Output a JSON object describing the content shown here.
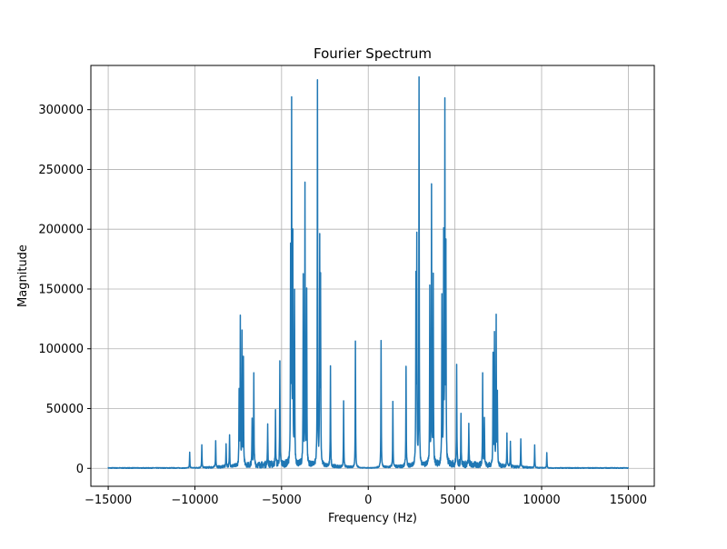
{
  "chart_data": {
    "type": "line",
    "title": "Fourier Spectrum",
    "xlabel": "Frequency (Hz)",
    "ylabel": "Magnitude",
    "xlim": [
      -16000,
      16500
    ],
    "ylim": [
      -15000,
      337000
    ],
    "x_ticks": [
      -15000,
      -10000,
      -5000,
      0,
      5000,
      10000,
      15000
    ],
    "x_tick_labels": [
      "−15000",
      "−10000",
      "−5000",
      "0",
      "5000",
      "10000",
      "15000"
    ],
    "y_ticks": [
      0,
      50000,
      100000,
      150000,
      200000,
      250000,
      300000
    ],
    "y_tick_labels": [
      "0",
      "50000",
      "100000",
      "150000",
      "200000",
      "250000",
      "300000"
    ],
    "grid": true,
    "line_color": "#1f77b4",
    "x_range": [
      -15000,
      15000
    ],
    "symmetric_about_zero": true,
    "peaks": [
      {
        "x": 740,
        "y": 106000
      },
      {
        "x": 1420,
        "y": 55000
      },
      {
        "x": 2180,
        "y": 85000
      },
      {
        "x": 2750,
        "y": 150000
      },
      {
        "x": 2800,
        "y": 183000
      },
      {
        "x": 2930,
        "y": 321000
      },
      {
        "x": 3550,
        "y": 145000
      },
      {
        "x": 3650,
        "y": 232000
      },
      {
        "x": 3750,
        "y": 155000
      },
      {
        "x": 4250,
        "y": 140000
      },
      {
        "x": 4350,
        "y": 185000
      },
      {
        "x": 4420,
        "y": 295000
      },
      {
        "x": 4480,
        "y": 175000
      },
      {
        "x": 5100,
        "y": 84000
      },
      {
        "x": 5350,
        "y": 45000
      },
      {
        "x": 5800,
        "y": 35000
      },
      {
        "x": 6600,
        "y": 75000
      },
      {
        "x": 6700,
        "y": 40000
      },
      {
        "x": 7200,
        "y": 90000
      },
      {
        "x": 7280,
        "y": 110000
      },
      {
        "x": 7380,
        "y": 123000
      },
      {
        "x": 7450,
        "y": 60000
      },
      {
        "x": 8000,
        "y": 27000
      },
      {
        "x": 8200,
        "y": 20000
      },
      {
        "x": 8800,
        "y": 23000
      },
      {
        "x": 9600,
        "y": 19000
      },
      {
        "x": 10300,
        "y": 13000
      }
    ]
  }
}
